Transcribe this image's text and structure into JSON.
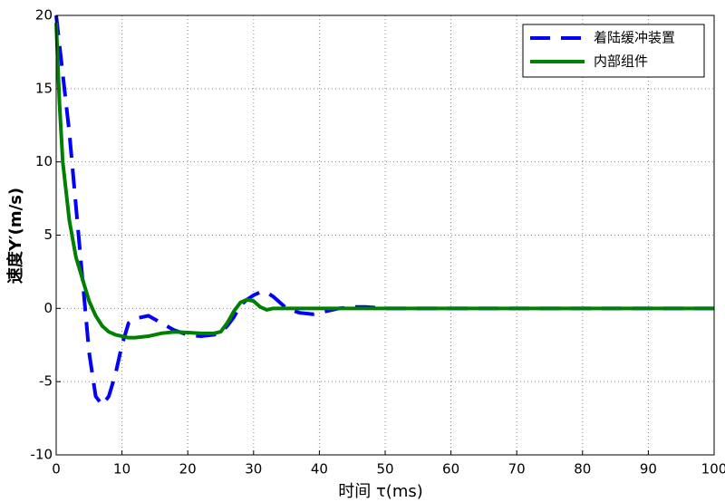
{
  "chart_data": {
    "type": "line",
    "xlabel": "时间 τ(ms)",
    "ylabel": "速度Y′(m/s)",
    "x": [
      0,
      0.5,
      1,
      2,
      3,
      4,
      5,
      6,
      7,
      8,
      9,
      10,
      11,
      12,
      14,
      16,
      18,
      20,
      22,
      24,
      25,
      26,
      27,
      28,
      29,
      30,
      31,
      32,
      33,
      35,
      37,
      39,
      41,
      43,
      45,
      47,
      50,
      60,
      70,
      80,
      90,
      100
    ],
    "series": [
      {
        "name": "着陆缓冲装置",
        "color": "#0000ff",
        "dashed": true,
        "values": [
          20,
          18,
          16,
          12,
          7,
          2,
          -3,
          -6,
          -6.6,
          -6,
          -4.5,
          -2.5,
          -1,
          -0.7,
          -0.5,
          -1,
          -1.5,
          -1.8,
          -1.9,
          -1.8,
          -1.6,
          -1.2,
          -0.6,
          0.2,
          0.6,
          0.9,
          1.1,
          1.1,
          0.8,
          0,
          -0.3,
          -0.4,
          -0.2,
          0,
          0.1,
          0.1,
          0,
          0,
          0,
          0,
          0,
          0
        ]
      },
      {
        "name": "内部组件",
        "color": "#008000",
        "dashed": false,
        "values": [
          19.5,
          14,
          10,
          6,
          3.5,
          2,
          0.5,
          -0.5,
          -1.2,
          -1.6,
          -1.8,
          -1.9,
          -2,
          -2,
          -1.9,
          -1.7,
          -1.6,
          -1.65,
          -1.7,
          -1.7,
          -1.6,
          -1,
          -0.2,
          0.4,
          0.6,
          0.5,
          0.1,
          -0.1,
          0,
          0,
          0,
          0,
          0,
          0,
          0,
          0,
          0,
          0,
          0,
          0,
          0,
          0
        ]
      }
    ],
    "xlim": [
      0,
      100
    ],
    "xticks": [
      0,
      10,
      20,
      30,
      40,
      50,
      60,
      70,
      80,
      90,
      100
    ],
    "ylim": [
      -10,
      20
    ],
    "yticks": [
      -10,
      -5,
      0,
      5,
      10,
      15,
      20
    ],
    "grid": true,
    "legend": "upper right"
  }
}
